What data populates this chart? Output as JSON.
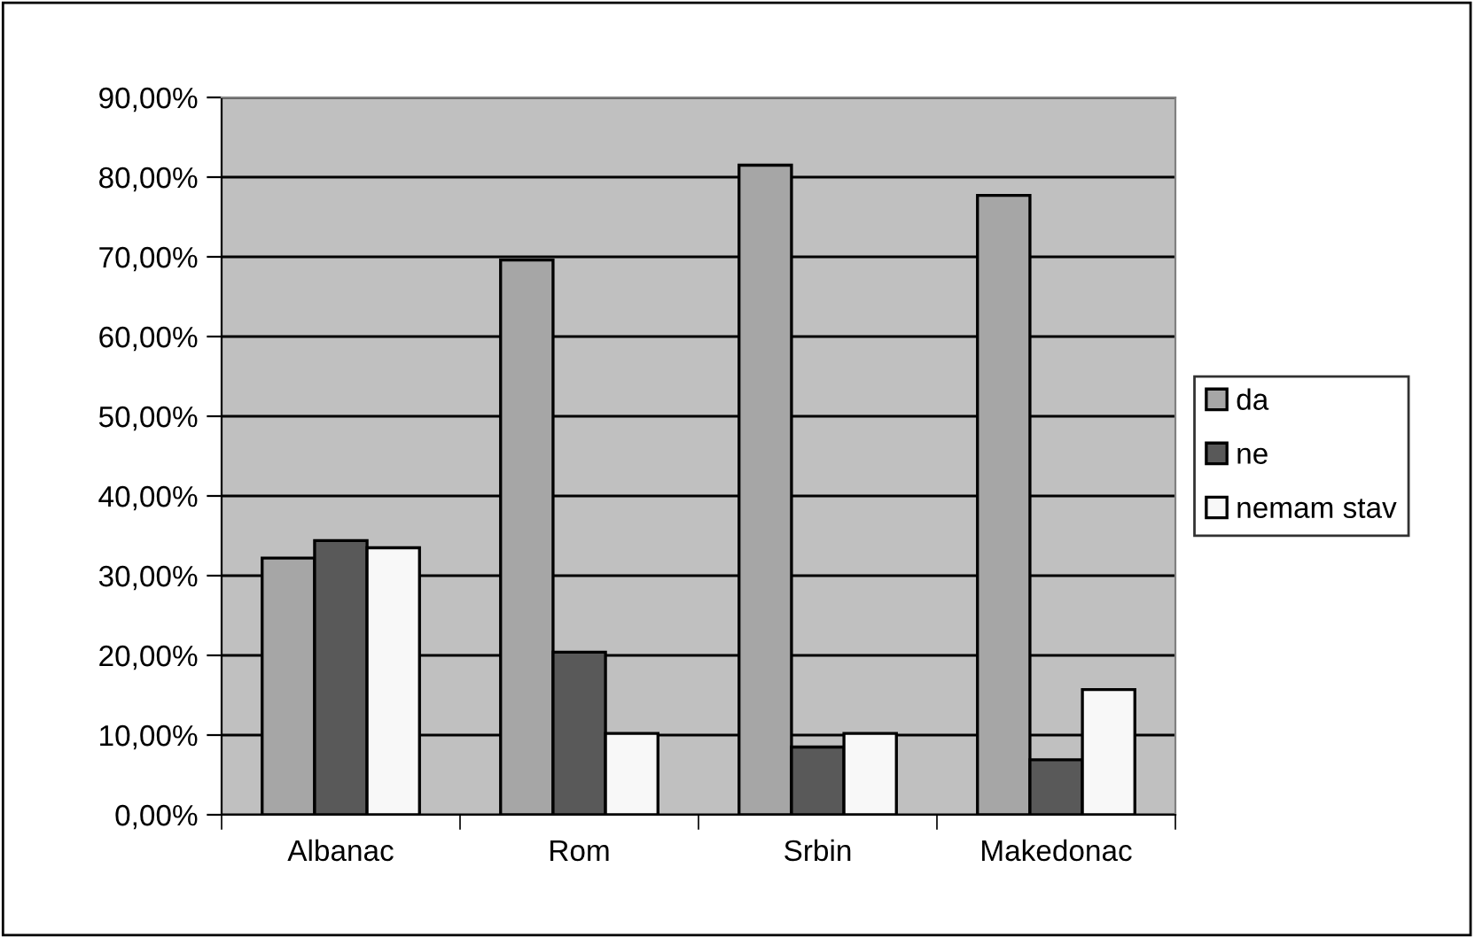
{
  "chart_data": {
    "type": "bar",
    "categories": [
      "Albanac",
      "Rom",
      "Srbin",
      "Makedonac"
    ],
    "series": [
      {
        "name": "da",
        "color": "#a6a6a6",
        "values": [
          32.2,
          69.6,
          81.5,
          77.7
        ]
      },
      {
        "name": "ne",
        "color": "#595959",
        "values": [
          34.4,
          20.4,
          8.5,
          6.9
        ]
      },
      {
        "name": "nemam stav",
        "color": "#f8f8f8",
        "values": [
          33.5,
          10.2,
          10.2,
          15.7
        ]
      }
    ],
    "ylim": [
      0,
      90
    ],
    "yticks": [
      {
        "value": 0,
        "label": "0,00%"
      },
      {
        "value": 10,
        "label": "10,00%"
      },
      {
        "value": 20,
        "label": "20,00%"
      },
      {
        "value": 30,
        "label": "30,00%"
      },
      {
        "value": 40,
        "label": "40,00%"
      },
      {
        "value": 50,
        "label": "50,00%"
      },
      {
        "value": 60,
        "label": "60,00%"
      },
      {
        "value": 70,
        "label": "70,00%"
      },
      {
        "value": 80,
        "label": "80,00%"
      },
      {
        "value": 90,
        "label": "90,00%"
      }
    ],
    "grid": "y",
    "legend": "right"
  }
}
